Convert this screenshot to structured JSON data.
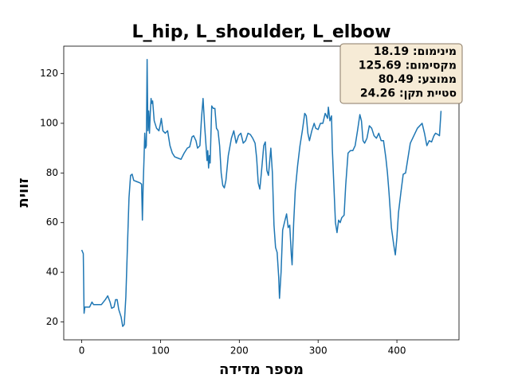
{
  "chart_data": {
    "type": "line",
    "title": "L_hip, L_shoulder, L_elbow",
    "xlabel": "מספר מדידה",
    "ylabel": "זווית",
    "annotation": [
      "מינימום: 18.19",
      "מקסימום: 125.69",
      "ממוצע: 80.49",
      "סטיית תקן: 24.26"
    ],
    "color": "#1f77b4",
    "x": [
      0,
      2,
      3,
      4,
      10,
      13,
      15,
      20,
      25,
      30,
      33,
      36,
      38,
      41,
      43,
      45,
      47,
      50,
      52,
      54,
      56,
      58,
      60,
      62,
      64,
      66,
      70,
      74,
      76,
      77,
      78,
      79,
      80,
      81,
      82,
      83,
      84,
      85,
      86,
      87,
      88,
      89,
      90,
      92,
      95,
      98,
      100,
      101,
      103,
      106,
      109,
      112,
      115,
      118,
      122,
      126,
      130,
      134,
      137,
      140,
      142,
      145,
      147,
      150,
      152,
      154,
      156,
      158,
      159,
      160,
      161,
      162,
      163,
      165,
      167,
      169,
      171,
      173,
      175,
      177,
      179,
      181,
      183,
      186,
      190,
      193,
      196,
      199,
      202,
      205,
      208,
      211,
      214,
      217,
      220,
      222,
      224,
      226,
      228,
      231,
      233,
      235,
      237,
      240,
      242,
      244,
      246,
      248,
      250,
      251,
      253,
      255,
      258,
      260,
      262,
      264,
      266,
      267,
      269,
      271,
      274,
      277,
      280,
      283,
      285,
      287,
      289,
      292,
      295,
      297,
      300,
      303,
      306,
      309,
      312,
      313,
      315,
      317,
      318,
      320,
      322,
      324,
      326,
      328,
      330,
      333,
      335,
      338,
      341,
      344,
      347,
      350,
      353,
      355,
      357,
      359,
      362,
      365,
      368,
      371,
      374,
      377,
      380,
      383,
      386,
      388,
      390,
      393,
      396,
      398,
      400,
      402,
      405,
      408,
      411,
      414,
      417,
      420,
      423,
      426,
      429,
      432,
      435,
      438,
      441,
      444,
      447,
      449,
      452,
      454,
      456
    ],
    "values": [
      49,
      47.5,
      23.5,
      26,
      26,
      28,
      27,
      27,
      27,
      29,
      30.5,
      28,
      25.5,
      26,
      29,
      29,
      25,
      22,
      18.19,
      19,
      30,
      50,
      70,
      79,
      79.5,
      77,
      76.5,
      76,
      75.5,
      61,
      75,
      85,
      96,
      90,
      91,
      125.69,
      97,
      105,
      96,
      104,
      110,
      108,
      109,
      101,
      98,
      97,
      100,
      102,
      97,
      96,
      97,
      91,
      88,
      86.5,
      86,
      85.5,
      88,
      90,
      90.5,
      94.5,
      95,
      93,
      90,
      91,
      102,
      110,
      99,
      90,
      85,
      89,
      82,
      87,
      84,
      107,
      106,
      106,
      98,
      97,
      91,
      80,
      75,
      74,
      77,
      87,
      94,
      97,
      92,
      95,
      96,
      92,
      93,
      96,
      95.5,
      94,
      92,
      86,
      76,
      73.5,
      80,
      91,
      92.5,
      81,
      79,
      90,
      80,
      59,
      50,
      48,
      38,
      29.5,
      40,
      57,
      61,
      63.5,
      58,
      59,
      47,
      43,
      60,
      73,
      83,
      91,
      97,
      104,
      103,
      96,
      93,
      97,
      100,
      98,
      97.5,
      100,
      100,
      104,
      102,
      106.5,
      101,
      103,
      90,
      75,
      60,
      56,
      61,
      60,
      62,
      63,
      75,
      88,
      89,
      89,
      91,
      97,
      103.5,
      101,
      93,
      92,
      94,
      99,
      98,
      95,
      94,
      96,
      93,
      93,
      86,
      80,
      72,
      58,
      51,
      47,
      54,
      64,
      72,
      79.5,
      80,
      86,
      92,
      94,
      96,
      98,
      99,
      100,
      96,
      91,
      93,
      92.5,
      95,
      96,
      95.5,
      95,
      105
    ],
    "xlim": [
      -22.8,
      478.8
    ],
    "ylim": [
      12.8,
      131.07
    ],
    "xticks": [
      0,
      100,
      200,
      300,
      400
    ],
    "yticks": [
      20,
      40,
      60,
      80,
      100,
      120
    ]
  }
}
